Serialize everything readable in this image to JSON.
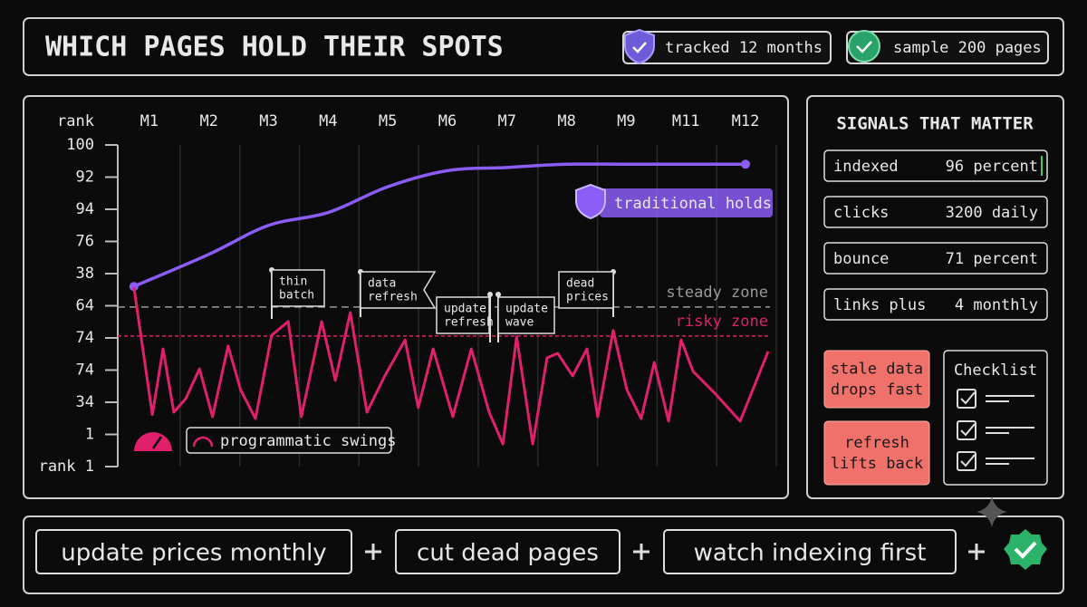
{
  "header": {
    "title": "WHICH PAGES HOLD THEIR SPOTS",
    "badges": [
      "tracked 12 months",
      "sample 200 pages"
    ]
  },
  "chart_data": {
    "type": "line",
    "y_label": "rank",
    "xlim": [
      0.47,
      11.41
    ],
    "xticks": [
      {
        "value": 1,
        "label": "M1"
      },
      {
        "value": 2,
        "label": "M2"
      },
      {
        "value": 3,
        "label": "M3"
      },
      {
        "value": 4,
        "label": "M4"
      },
      {
        "value": 5,
        "label": "M5"
      },
      {
        "value": 6,
        "label": "M6"
      },
      {
        "value": 7,
        "label": "M7"
      },
      {
        "value": 8,
        "label": "M8"
      },
      {
        "value": 9,
        "label": "M9"
      },
      {
        "value": 10,
        "label": "M11"
      },
      {
        "value": 11,
        "label": "M12"
      }
    ],
    "ylim": [
      0,
      10
    ],
    "yticks": [
      {
        "value": 10,
        "label": "100"
      },
      {
        "value": 9,
        "label": "92"
      },
      {
        "value": 8,
        "label": "94"
      },
      {
        "value": 7,
        "label": "76"
      },
      {
        "value": 6,
        "label": "38"
      },
      {
        "value": 5,
        "label": "64"
      },
      {
        "value": 4,
        "label": "74"
      },
      {
        "value": 3,
        "label": "74"
      },
      {
        "value": 2,
        "label": "34"
      },
      1,
      {
        "value": 0,
        "label": "rank 1"
      }
    ],
    "series": [
      {
        "name": "traditional holds",
        "color": "#8b5cf6",
        "x": [
          0.74,
          2,
          3,
          4,
          5,
          6,
          7,
          8,
          9,
          10,
          11
        ],
        "values": [
          5.6,
          6.6,
          7.5,
          7.9,
          8.7,
          9.2,
          9.3,
          9.4,
          9.4,
          9.4,
          9.4
        ]
      },
      {
        "name": "programmatic swings",
        "color": "#e0206a",
        "x": [
          0.74,
          1.05,
          1.23,
          1.41,
          1.61,
          1.84,
          2.06,
          2.32,
          2.53,
          2.78,
          3.05,
          3.33,
          3.55,
          3.89,
          4.12,
          4.37,
          4.65,
          4.95,
          5.29,
          5.51,
          5.76,
          6.09,
          6.4,
          6.7,
          6.93,
          7.16,
          7.43,
          7.67,
          7.85,
          8.1,
          8.34,
          8.52,
          8.78,
          9.01,
          9.25,
          9.47,
          9.71,
          9.92,
          10.12,
          10.5,
          10.91,
          11.38
        ],
        "values": [
          5.58,
          1.61,
          3.66,
          1.69,
          2.11,
          3.04,
          1.55,
          3.75,
          2.39,
          1.49,
          4.08,
          4.51,
          1.55,
          4.51,
          2.68,
          4.79,
          1.69,
          2.82,
          3.94,
          1.83,
          3.66,
          1.55,
          3.66,
          1.69,
          0.7,
          4.03,
          0.7,
          3.38,
          3.52,
          2.82,
          3.66,
          1.55,
          4.23,
          2.39,
          1.49,
          3.24,
          1.41,
          3.94,
          2.96,
          2.25,
          1.41,
          3.58
        ]
      }
    ],
    "reference_lines": [
      {
        "label": "steady zone",
        "value": 4.96,
        "color": "#9a9a9a"
      },
      {
        "label": "risky zone",
        "value": 4.06,
        "color": "#e0206a"
      }
    ],
    "annotations": [
      {
        "lines": [
          "thin",
          "batch"
        ]
      },
      {
        "lines": [
          "data",
          "refresh"
        ]
      },
      {
        "lines": [
          "update",
          "refresh"
        ]
      },
      {
        "lines": [
          "update",
          "wave"
        ]
      },
      {
        "lines": [
          "dead",
          "prices"
        ]
      }
    ]
  },
  "signals": {
    "title": "SIGNALS THAT MATTER",
    "rows": [
      [
        "indexed",
        "96 percent"
      ],
      [
        "clicks",
        "3200 daily"
      ],
      [
        "bounce",
        "71 percent"
      ],
      [
        "links plus",
        "4 monthly"
      ]
    ],
    "warnings": [
      [
        "stale data",
        "drops fast"
      ],
      [
        "refresh",
        "lifts back"
      ]
    ],
    "checklist": "Checklist"
  },
  "footer": {
    "actions": [
      "update prices monthly",
      "cut dead pages",
      "watch indexing first"
    ]
  }
}
